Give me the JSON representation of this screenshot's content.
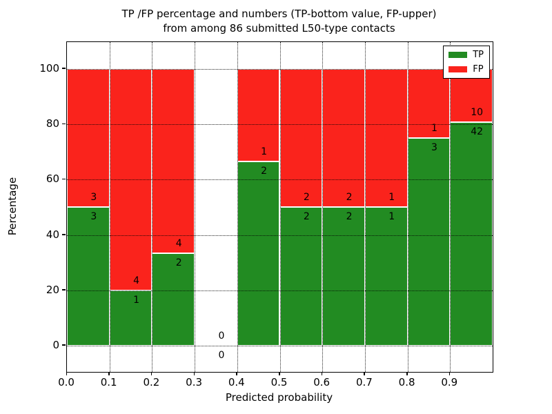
{
  "figure": {
    "title_line1": "TP /FP percentage and numbers (TP-bottom value, FP-upper)",
    "title_line2": "from among 86 submitted L50-type contacts",
    "xlabel": "Predicted probability",
    "ylabel": "Percentage"
  },
  "legend": {
    "items": [
      {
        "label": "TP",
        "color": "#228b22"
      },
      {
        "label": "FP",
        "color": "#fa231c"
      }
    ]
  },
  "chart_data": {
    "type": "bar",
    "stacked": true,
    "title": "TP /FP percentage and numbers (TP-bottom value, FP-upper) from among 86 submitted L50-type contacts",
    "xlabel": "Predicted probability",
    "ylabel": "Percentage",
    "xlim": [
      0.0,
      1.0
    ],
    "ylim": [
      -9.5,
      109.7
    ],
    "xticks": [
      "0.0",
      "0.1",
      "0.2",
      "0.3",
      "0.4",
      "0.5",
      "0.6",
      "0.7",
      "0.8",
      "0.9"
    ],
    "xtick_values": [
      0.0,
      0.1,
      0.2,
      0.3,
      0.4,
      0.5,
      0.6,
      0.7,
      0.8,
      0.9
    ],
    "yticks": [
      "0",
      "20",
      "40",
      "60",
      "80",
      "100"
    ],
    "ytick_values": [
      0,
      20,
      40,
      60,
      80,
      100
    ],
    "grid": true,
    "grid_style": "dotted",
    "legend_position": "upper right",
    "colors": {
      "tp": "#228b22",
      "fp": "#fa231c",
      "bar_edge": "#ffffff"
    },
    "bins": [
      {
        "x_start": 0.0,
        "x_end": 0.1,
        "tp_count": 3,
        "fp_count": 3,
        "tp_pct": 50.0,
        "fp_pct": 50.0
      },
      {
        "x_start": 0.1,
        "x_end": 0.2,
        "tp_count": 1,
        "fp_count": 4,
        "tp_pct": 20.0,
        "fp_pct": 80.0
      },
      {
        "x_start": 0.2,
        "x_end": 0.3,
        "tp_count": 2,
        "fp_count": 4,
        "tp_pct": 33.33,
        "fp_pct": 66.67
      },
      {
        "x_start": 0.3,
        "x_end": 0.4,
        "tp_count": 0,
        "fp_count": 0,
        "tp_pct": 0.0,
        "fp_pct": 0.0
      },
      {
        "x_start": 0.4,
        "x_end": 0.5,
        "tp_count": 2,
        "fp_count": 1,
        "tp_pct": 66.67,
        "fp_pct": 33.33
      },
      {
        "x_start": 0.5,
        "x_end": 0.6,
        "tp_count": 2,
        "fp_count": 2,
        "tp_pct": 50.0,
        "fp_pct": 50.0
      },
      {
        "x_start": 0.6,
        "x_end": 0.7,
        "tp_count": 2,
        "fp_count": 2,
        "tp_pct": 50.0,
        "fp_pct": 50.0
      },
      {
        "x_start": 0.7,
        "x_end": 0.8,
        "tp_count": 1,
        "fp_count": 1,
        "tp_pct": 50.0,
        "fp_pct": 50.0
      },
      {
        "x_start": 0.8,
        "x_end": 0.9,
        "tp_count": 3,
        "fp_count": 1,
        "tp_pct": 75.0,
        "fp_pct": 25.0
      },
      {
        "x_start": 0.9,
        "x_end": 1.0,
        "tp_count": 42,
        "fp_count": 10,
        "tp_pct": 80.77,
        "fp_pct": 19.23
      }
    ]
  }
}
